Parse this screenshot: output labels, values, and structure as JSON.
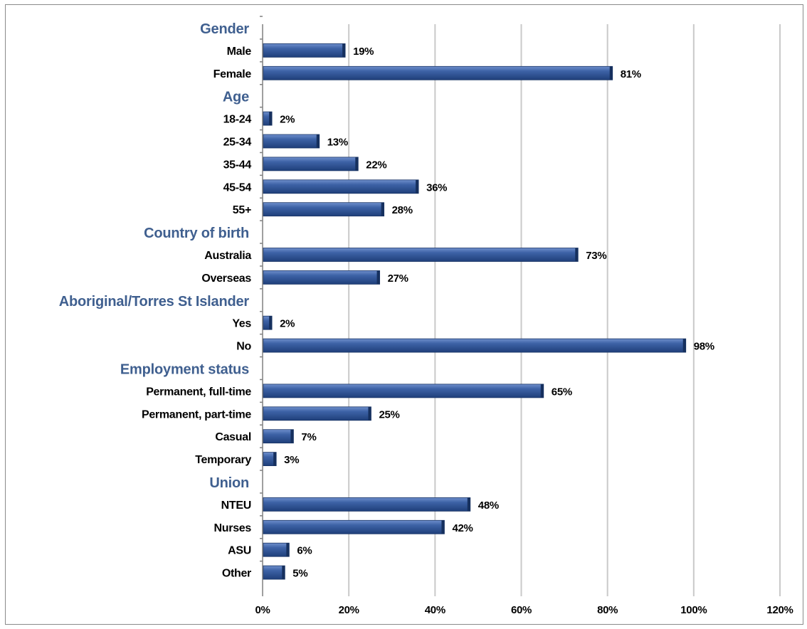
{
  "chart_data": {
    "type": "bar",
    "orientation": "horizontal",
    "xlim": [
      0,
      120
    ],
    "x_ticks": [
      "0%",
      "20%",
      "40%",
      "60%",
      "80%",
      "100%",
      "120%"
    ],
    "grid": true,
    "legend": "none",
    "colors": {
      "bar": "#2f5597",
      "bar_highlight": "#5b7fc0",
      "group_label": "#3f5f8f"
    },
    "rows": [
      {
        "kind": "group",
        "label": "Gender"
      },
      {
        "kind": "bar",
        "label": "Male",
        "value": 19,
        "value_label": "19%"
      },
      {
        "kind": "bar",
        "label": "Female",
        "value": 81,
        "value_label": "81%"
      },
      {
        "kind": "group",
        "label": "Age"
      },
      {
        "kind": "bar",
        "label": "18-24",
        "value": 2,
        "value_label": "2%"
      },
      {
        "kind": "bar",
        "label": "25-34",
        "value": 13,
        "value_label": "13%"
      },
      {
        "kind": "bar",
        "label": "35-44",
        "value": 22,
        "value_label": "22%"
      },
      {
        "kind": "bar",
        "label": "45-54",
        "value": 36,
        "value_label": "36%"
      },
      {
        "kind": "bar",
        "label": "55+",
        "value": 28,
        "value_label": "28%"
      },
      {
        "kind": "group",
        "label": "Country of birth"
      },
      {
        "kind": "bar",
        "label": "Australia",
        "value": 73,
        "value_label": "73%"
      },
      {
        "kind": "bar",
        "label": "Overseas",
        "value": 27,
        "value_label": "27%"
      },
      {
        "kind": "group",
        "label": "Aboriginal/Torres St Islander"
      },
      {
        "kind": "bar",
        "label": "Yes",
        "value": 2,
        "value_label": "2%"
      },
      {
        "kind": "bar",
        "label": "No",
        "value": 98,
        "value_label": "98%"
      },
      {
        "kind": "group",
        "label": "Employment status"
      },
      {
        "kind": "bar",
        "label": "Permanent, full-time",
        "value": 65,
        "value_label": "65%"
      },
      {
        "kind": "bar",
        "label": "Permanent, part-time",
        "value": 25,
        "value_label": "25%"
      },
      {
        "kind": "bar",
        "label": "Casual",
        "value": 7,
        "value_label": "7%"
      },
      {
        "kind": "bar",
        "label": "Temporary",
        "value": 3,
        "value_label": "3%"
      },
      {
        "kind": "group",
        "label": "Union"
      },
      {
        "kind": "bar",
        "label": "NTEU",
        "value": 48,
        "value_label": "48%"
      },
      {
        "kind": "bar",
        "label": "Nurses",
        "value": 42,
        "value_label": "42%"
      },
      {
        "kind": "bar",
        "label": "ASU",
        "value": 6,
        "value_label": "6%"
      },
      {
        "kind": "bar",
        "label": "Other",
        "value": 5,
        "value_label": "5%"
      }
    ]
  }
}
